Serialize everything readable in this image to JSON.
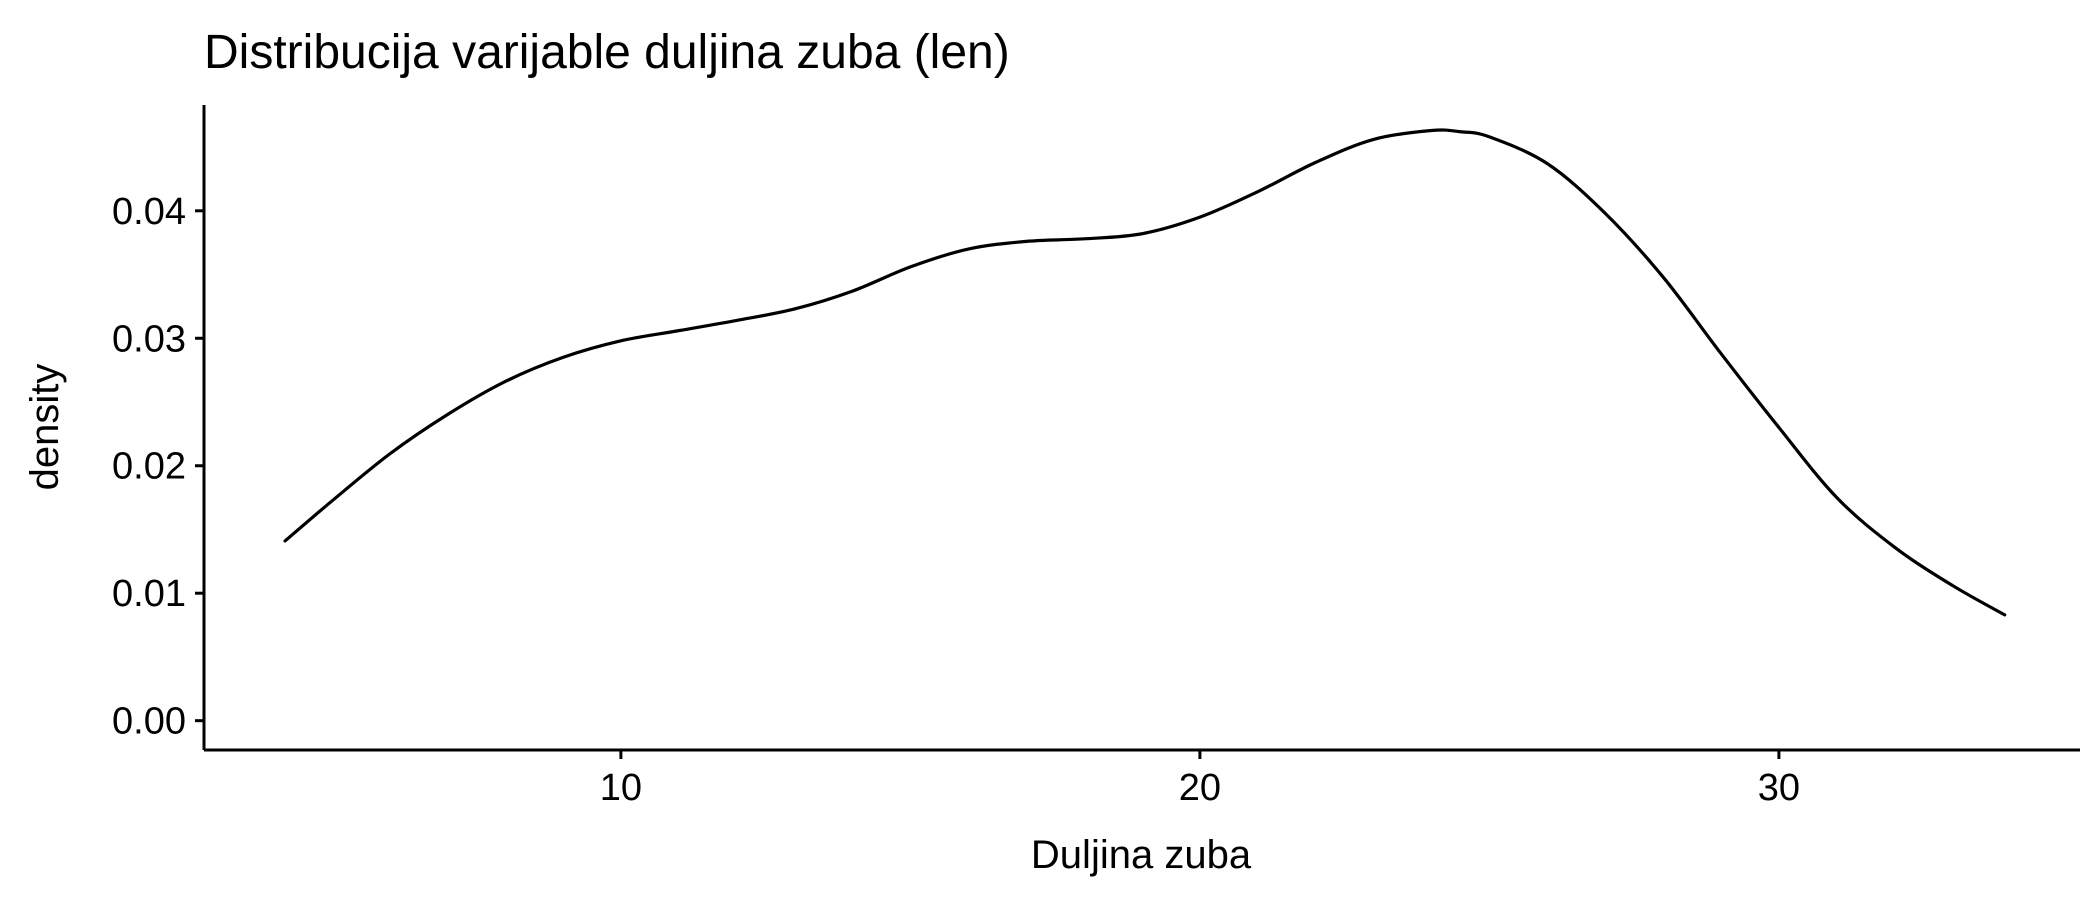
{
  "chart_data": {
    "type": "line",
    "title": "Distribucija varijable duljina zuba (len)",
    "xlabel": "Duljina zuba",
    "ylabel": "density",
    "xlim": [
      2.8,
      35.2
    ],
    "ylim": [
      -0.0023,
      0.0483
    ],
    "x_ticks": [
      10,
      20,
      30
    ],
    "x_tick_labels": [
      "10",
      "20",
      "30"
    ],
    "y_ticks": [
      0.0,
      0.01,
      0.02,
      0.03,
      0.04
    ],
    "y_tick_labels": [
      "0.00",
      "0.01",
      "0.02",
      "0.03",
      "0.04"
    ],
    "grid": false,
    "legend": "none",
    "line_color": "#000000",
    "series": [
      {
        "x": [
          4.2,
          5.0,
          6.0,
          7.0,
          8.0,
          9.0,
          10.0,
          11.0,
          12.0,
          13.0,
          14.0,
          15.0,
          16.0,
          17.0,
          18.0,
          19.0,
          20.0,
          21.0,
          22.0,
          23.0,
          24.0,
          24.5,
          25.0,
          26.0,
          27.0,
          28.0,
          29.0,
          30.0,
          31.0,
          32.0,
          33.0,
          33.9
        ],
        "y": [
          0.0141,
          0.0172,
          0.0209,
          0.024,
          0.0266,
          0.0285,
          0.0298,
          0.0306,
          0.0314,
          0.0323,
          0.0337,
          0.0356,
          0.037,
          0.0376,
          0.0378,
          0.0382,
          0.0395,
          0.0415,
          0.0438,
          0.0456,
          0.0463,
          0.0462,
          0.0458,
          0.0437,
          0.0398,
          0.0348,
          0.0288,
          0.023,
          0.0175,
          0.0136,
          0.0106,
          0.0083
        ]
      }
    ]
  }
}
